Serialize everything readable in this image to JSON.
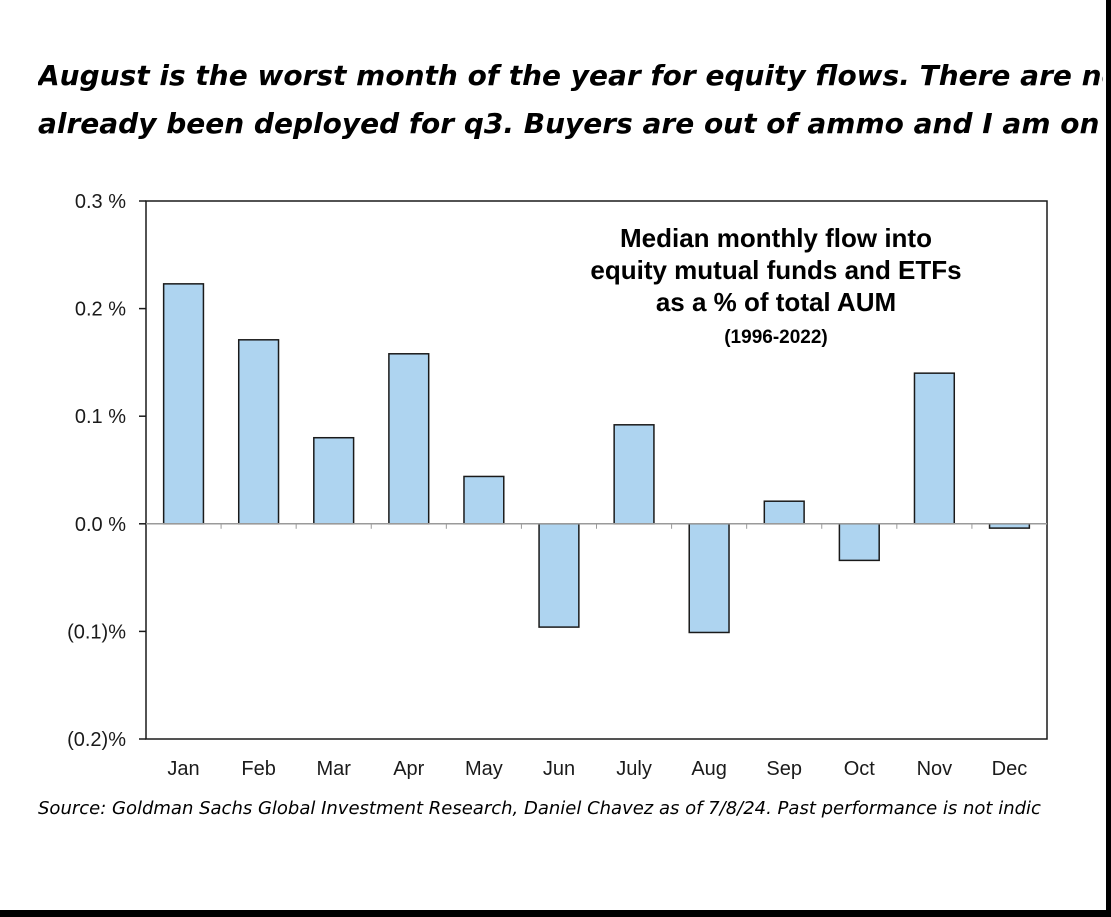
{
  "headline": {
    "line1": "August is the worst month of the year for equity flows. There are no",
    "line2": "already been deployed for q3. Buyers are out of ammo and I am on"
  },
  "source": "Source: Goldman Sachs Global Investment Research, Daniel Chavez  as of 7/8/24. Past performance is not indic",
  "colors": {
    "bar_fill": "#aed4f0",
    "bar_stroke": "#1a1a1a",
    "axis": "#1a1a1a",
    "zero_line": "#9a9a9a"
  },
  "chart_data": {
    "type": "bar",
    "title": [
      "Median monthly flow into",
      "equity mutual funds and ETFs",
      "as a % of total AUM"
    ],
    "subtitle": "(1996-2022)",
    "xlabel": "",
    "ylabel": "",
    "categories": [
      "Jan",
      "Feb",
      "Mar",
      "Apr",
      "May",
      "Jun",
      "July",
      "Aug",
      "Sep",
      "Oct",
      "Nov",
      "Dec"
    ],
    "series": [
      {
        "values": [
          0.223,
          0.171,
          0.08,
          0.158,
          0.044,
          -0.096,
          0.092,
          -0.101,
          0.021,
          -0.034,
          0.14,
          -0.004
        ]
      }
    ],
    "ylim": [
      -0.2,
      0.3
    ],
    "yticks": [
      0.3,
      0.2,
      0.1,
      0.0,
      -0.1,
      -0.2
    ],
    "ytick_labels": [
      "0.3 %",
      "0.2 %",
      "0.1 %",
      "0.0 %",
      "(0.1)%",
      "(0.2)%"
    ],
    "grid": false,
    "legend": "none"
  }
}
